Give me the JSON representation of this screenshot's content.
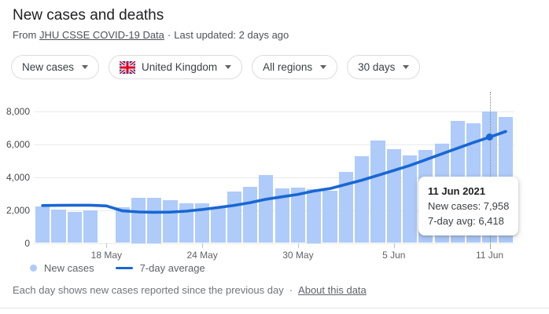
{
  "header": {
    "title": "New cases and deaths",
    "source_prefix": "From",
    "source_link": "JHU CSSE COVID-19 Data",
    "separator": "·",
    "updated": "Last updated: 2 days ago"
  },
  "filters": {
    "metric": "New cases",
    "country": "United Kingdom",
    "region": "All regions",
    "range": "30 days"
  },
  "chart_data": {
    "type": "bar",
    "title": "New cases and deaths",
    "xlabel": "",
    "ylabel": "",
    "ylim": [
      0,
      8800
    ],
    "grid": true,
    "legend_position": "bottom-left",
    "x": [
      "14 May",
      "15 May",
      "16 May",
      "17 May",
      "18 May",
      "19 May",
      "20 May",
      "21 May",
      "22 May",
      "23 May",
      "24 May",
      "25 May",
      "26 May",
      "27 May",
      "28 May",
      "29 May",
      "30 May",
      "31 May",
      "1 Jun",
      "2 Jun",
      "3 Jun",
      "4 Jun",
      "5 Jun",
      "6 Jun",
      "7 Jun",
      "8 Jun",
      "9 Jun",
      "10 Jun",
      "11 Jun",
      "12 Jun"
    ],
    "series": [
      {
        "name": "New cases",
        "type": "bar",
        "color": "#aecbfa",
        "values": [
          2220,
          2030,
          1870,
          1990,
          null,
          2190,
          2750,
          2750,
          2590,
          2410,
          2410,
          2100,
          3100,
          3410,
          4100,
          3330,
          3370,
          3250,
          3180,
          4320,
          5240,
          6220,
          5710,
          5320,
          5630,
          6030,
          7410,
          7270,
          7958,
          7620
        ]
      },
      {
        "name": "7-day average",
        "type": "line",
        "color": "#1967d2",
        "values": [
          2270,
          2280,
          2290,
          2290,
          2250,
          1950,
          1880,
          1860,
          1870,
          1930,
          2030,
          2150,
          2280,
          2450,
          2650,
          2800,
          2950,
          3150,
          3300,
          3550,
          3810,
          4100,
          4400,
          4700,
          5050,
          5400,
          5750,
          6100,
          6418,
          6760
        ]
      }
    ],
    "yticks": [
      {
        "value": 0,
        "label": "0"
      },
      {
        "value": 2000,
        "label": "2,000"
      },
      {
        "value": 4000,
        "label": "4,000"
      },
      {
        "value": 6000,
        "label": "6,000"
      },
      {
        "value": 8000,
        "label": "8,000"
      }
    ],
    "xticks": [
      {
        "index": 4,
        "label": "18 May"
      },
      {
        "index": 10,
        "label": "24 May"
      },
      {
        "index": 16,
        "label": "30 May"
      },
      {
        "index": 22,
        "label": "5 Jun"
      },
      {
        "index": 28,
        "label": "11 Jun"
      }
    ],
    "tooltip": {
      "index": 28,
      "title": "11 Jun 2021",
      "new_cases": "New cases: 7,958",
      "avg": "7-day avg: 6,418"
    }
  },
  "footer": {
    "note": "Each day shows new cases reported since the previous day",
    "separator": "·",
    "link": "About this data"
  }
}
